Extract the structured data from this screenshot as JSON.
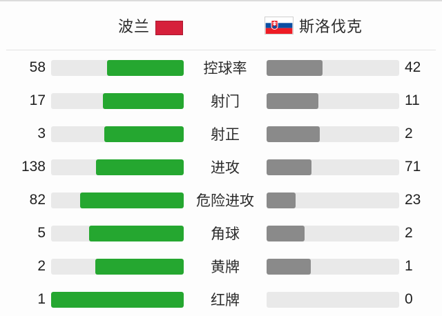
{
  "header": {
    "home": {
      "name": "波兰",
      "flag_icon": "poland-flag"
    },
    "away": {
      "name": "斯洛伐克",
      "flag_icon": "slovakia-flag"
    }
  },
  "stats": [
    {
      "label": "控球率",
      "home": 58,
      "away": 42
    },
    {
      "label": "射门",
      "home": 17,
      "away": 11
    },
    {
      "label": "射正",
      "home": 3,
      "away": 2
    },
    {
      "label": "进攻",
      "home": 138,
      "away": 71
    },
    {
      "label": "危险进攻",
      "home": 82,
      "away": 23
    },
    {
      "label": "角球",
      "home": 5,
      "away": 2
    },
    {
      "label": "黄牌",
      "home": 2,
      "away": 1
    },
    {
      "label": "红牌",
      "home": 1,
      "away": 0
    }
  ],
  "colors": {
    "home_bar": "#25a730",
    "away_bar": "#8a8a8a",
    "bar_track": "#e9e9e9",
    "poland_flag_red": "#d6203b",
    "slovakia_flag_blue": "#0b4ea2",
    "slovakia_flag_red": "#ee1c25"
  },
  "chart_data": {
    "type": "bar",
    "title": "",
    "categories": [
      "控球率",
      "射门",
      "射正",
      "进攻",
      "危险进攻",
      "角球",
      "黄牌",
      "红牌"
    ],
    "series": [
      {
        "name": "波兰",
        "values": [
          58,
          17,
          3,
          138,
          82,
          5,
          2,
          1
        ]
      },
      {
        "name": "斯洛伐克",
        "values": [
          42,
          11,
          2,
          71,
          23,
          2,
          1,
          0
        ]
      }
    ],
    "layout": "paired horizontal bars, home fill anchored to center-right edge, away fill anchored to center-left edge, fill length = value/(home+away) of track"
  }
}
